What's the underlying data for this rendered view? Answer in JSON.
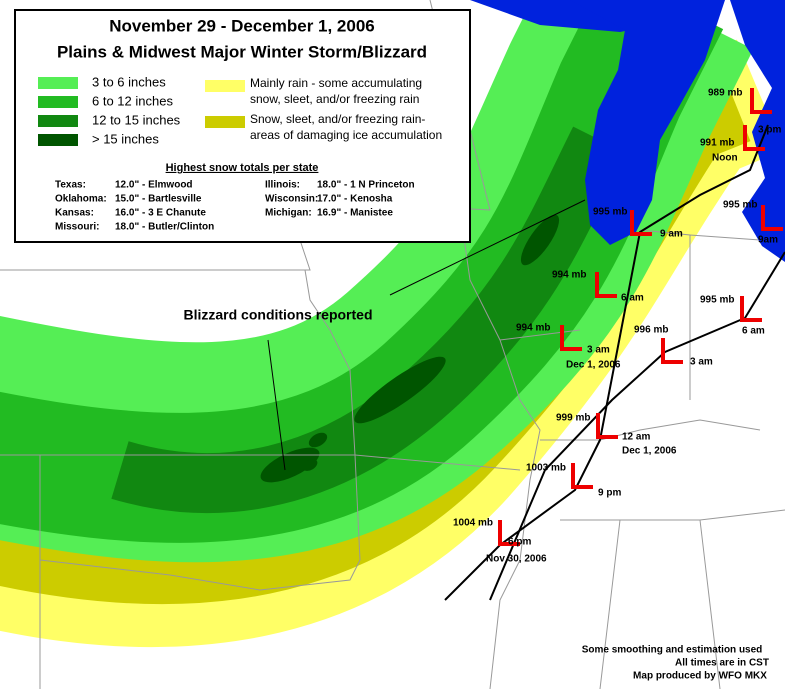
{
  "title": [
    "November 29 - December 1, 2006",
    "Plains & Midwest Major Winter Storm/Blizzard"
  ],
  "snow_legend": [
    {
      "label": "3 to 6 inches",
      "color": "#55ee55"
    },
    {
      "label": "6 to 12 inches",
      "color": "#22bb22"
    },
    {
      "label": "12 to 15 inches",
      "color": "#118811"
    },
    {
      "label": "> 15 inches",
      "color": "#005500"
    }
  ],
  "rain_legend": [
    {
      "lines": [
        "Mainly rain - some accumulating",
        "snow, sleet, and/or freezing rain"
      ],
      "color": "#ffff66"
    },
    {
      "lines": [
        "Snow, sleet, and/or freezing rain-",
        "areas of damaging ice accumulation"
      ],
      "color": "#cccc00"
    }
  ],
  "totals_heading": "Highest snow totals per state",
  "totals": [
    [
      "Texas:",
      "12.0\" - Elmwood"
    ],
    [
      "Oklahoma:",
      "15.0\" - Bartlesville"
    ],
    [
      "Kansas:",
      "16.0\" - 3 E Chanute"
    ],
    [
      "Missouri:",
      "18.0\" - Butler/Clinton"
    ],
    [
      "Illinois:",
      "18.0\" - 1 N Princeton"
    ],
    [
      "Wisconsin:",
      "17.0\" - Kenosha"
    ],
    [
      "Michigan:",
      "16.9\" - Manistee"
    ]
  ],
  "annotation": "Blizzard conditions reported",
  "lows": [
    [
      "1004 mb",
      "6 pm",
      "Nov 30, 2006"
    ],
    [
      "1003 mb",
      "9 pm"
    ],
    [
      "999 mb",
      "12 am",
      "Dec 1, 2006"
    ],
    [
      "994 mb",
      "3 am",
      "Dec 1, 2006"
    ],
    [
      "994 mb",
      "6 am"
    ],
    [
      "995 mb",
      "9 am"
    ],
    [
      "991 mb",
      "Noon"
    ],
    [
      "989 mb",
      "3 pm"
    ],
    [
      "996 mb",
      "3 am"
    ],
    [
      "995 mb",
      "6 am"
    ],
    [
      "995 mb",
      "9am"
    ]
  ],
  "footer": [
    "Some smoothing and estimation used",
    "All times are in CST",
    "Map produced by WFO MKX"
  ]
}
